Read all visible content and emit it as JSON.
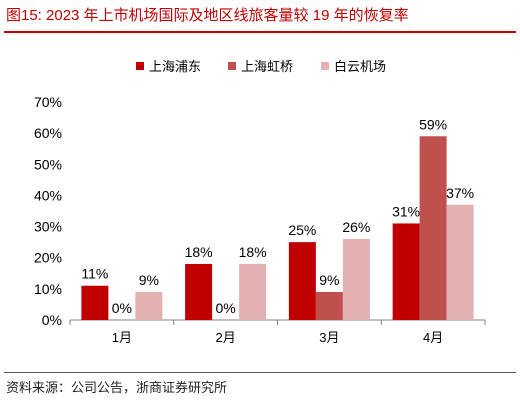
{
  "figure": {
    "title": "图15:  2023 年上市机场国际及地区线旅客量较 19 年的恢复率",
    "source": "资料来源：公司公告，浙商证券研究所"
  },
  "colors": {
    "title_red": "#c00000",
    "series": [
      "#c00000",
      "#c0504d",
      "#e3b1b1"
    ]
  },
  "chart_data": {
    "type": "bar",
    "title": "",
    "xlabel": "",
    "ylabel": "",
    "categories": [
      "1月",
      "2月",
      "3月",
      "4月"
    ],
    "series": [
      {
        "name": "上海浦东",
        "values": [
          11,
          18,
          25,
          31
        ]
      },
      {
        "name": "上海虹桥",
        "values": [
          0,
          0,
          9,
          59
        ]
      },
      {
        "name": "白云机场",
        "values": [
          9,
          18,
          26,
          37
        ]
      }
    ],
    "value_labels": [
      [
        "11%",
        "18%",
        "25%",
        "31%"
      ],
      [
        "0%",
        "0%",
        "9%",
        "59%"
      ],
      [
        "9%",
        "18%",
        "26%",
        "37%"
      ]
    ],
    "yticks": [
      "0%",
      "10%",
      "20%",
      "30%",
      "40%",
      "50%",
      "60%",
      "70%"
    ],
    "ylim": [
      0,
      70
    ],
    "grid": false,
    "legend": "top-center"
  }
}
